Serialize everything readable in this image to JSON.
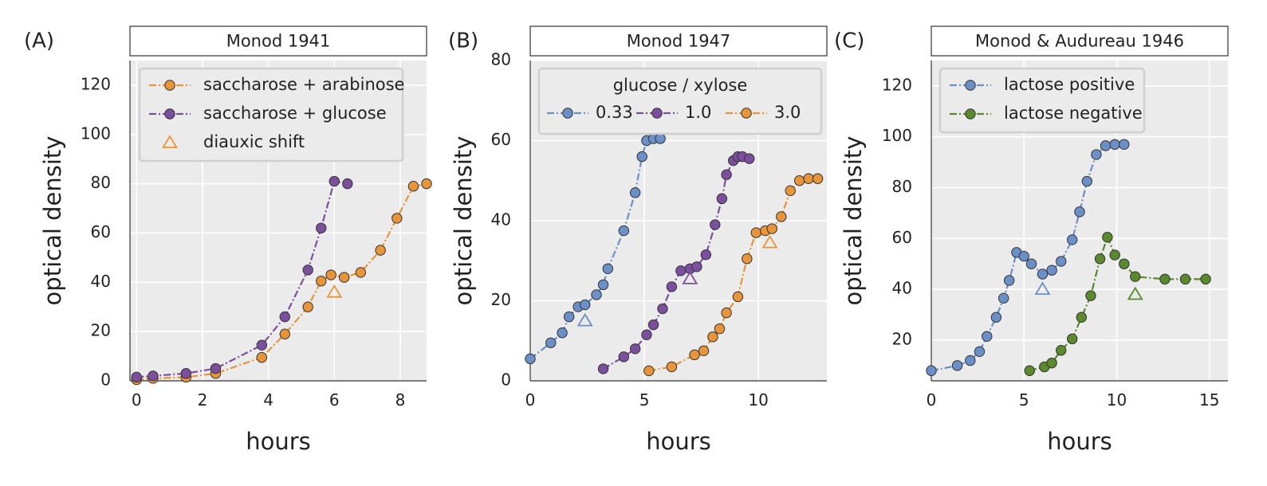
{
  "chart_data": [
    {
      "panel_label": "(A)",
      "type": "line",
      "title": "Monod 1941",
      "xlabel": "hours",
      "ylabel": "optical density",
      "xlim": [
        -0.2,
        8.8
      ],
      "ylim": [
        0,
        130
      ],
      "xticks": [
        0,
        2,
        4,
        6,
        8
      ],
      "yticks": [
        0,
        20,
        40,
        60,
        80,
        100,
        120
      ],
      "grid": true,
      "legend": {
        "position": "top-left",
        "title": "",
        "layout": "vertical"
      },
      "series": [
        {
          "name": "saccharose + arabinose",
          "color": "#E8943A",
          "x": [
            0,
            0.5,
            1.5,
            2.4,
            3.8,
            4.5,
            5.2,
            5.6,
            5.9,
            6.3,
            6.8,
            7.4,
            7.9,
            8.4,
            8.8
          ],
          "y": [
            0.5,
            1,
            1.5,
            3,
            9.5,
            19,
            30,
            40.5,
            43,
            42,
            44,
            53,
            66,
            79,
            80
          ]
        },
        {
          "name": "saccharose + glucose",
          "color": "#7B4F9E",
          "x": [
            0,
            0.5,
            1.5,
            2.4,
            3.8,
            4.5,
            5.2,
            5.6,
            6.0,
            6.4
          ],
          "y": [
            1.5,
            2,
            3,
            5,
            14.5,
            26,
            45,
            62,
            81,
            80
          ]
        }
      ],
      "markers": [
        {
          "name": "diauxic shift",
          "color": "#E8943A",
          "x": 6.0,
          "y": 36
        }
      ]
    },
    {
      "panel_label": "(B)",
      "type": "line",
      "title": "Monod 1947",
      "xlabel": "hours",
      "ylabel": "optical density",
      "xlim": [
        0,
        13
      ],
      "ylim": [
        0,
        80
      ],
      "xticks": [
        0,
        5,
        10
      ],
      "yticks": [
        0,
        20,
        40,
        60,
        80
      ],
      "grid": true,
      "legend": {
        "position": "top-center",
        "title": "glucose / xylose",
        "layout": "horizontal"
      },
      "series": [
        {
          "name": "0.33",
          "color": "#6B8FC7",
          "x": [
            0,
            0.9,
            1.4,
            1.7,
            2.1,
            2.4,
            2.9,
            3.2,
            3.4,
            4.1,
            4.6,
            4.9,
            5.1,
            5.4,
            5.7
          ],
          "y": [
            5.5,
            9.5,
            12,
            16,
            18.5,
            19,
            21.5,
            24,
            28,
            37.5,
            47,
            56,
            60,
            60.5,
            60.5
          ]
        },
        {
          "name": "1.0",
          "color": "#7B4F9E",
          "x": [
            3.2,
            4.1,
            4.6,
            5.1,
            5.4,
            5.8,
            6.2,
            6.6,
            7.0,
            7.3,
            7.7,
            8.1,
            8.4,
            8.6,
            8.9,
            9.1,
            9.3,
            9.6
          ],
          "y": [
            3,
            6,
            8,
            11.5,
            14,
            18,
            23.5,
            27.5,
            28,
            28.5,
            31.5,
            39,
            45.5,
            51.5,
            55,
            56,
            56,
            55.5
          ]
        },
        {
          "name": "3.0",
          "color": "#E8943A",
          "x": [
            5.2,
            6.2,
            7.2,
            7.6,
            8.0,
            8.3,
            8.6,
            9.1,
            9.5,
            9.9,
            10.3,
            10.6,
            11.0,
            11.4,
            11.8,
            12.2,
            12.6
          ],
          "y": [
            2.5,
            3.5,
            6.5,
            7.5,
            11,
            13,
            17,
            21,
            30.5,
            37,
            37.5,
            38,
            41,
            47.5,
            50,
            50.5,
            50.5
          ]
        }
      ],
      "markers": [
        {
          "name": "0.33",
          "color": "#6B8FC7",
          "x": 2.4,
          "y": 15
        },
        {
          "name": "1.0",
          "color": "#7B4F9E",
          "x": 7.0,
          "y": 25.5
        },
        {
          "name": "3.0",
          "color": "#E8943A",
          "x": 10.5,
          "y": 34.5
        }
      ]
    },
    {
      "panel_label": "(C)",
      "type": "line",
      "title": "Monod & Audureau 1946",
      "xlabel": "hours",
      "ylabel": "optical density",
      "xlim": [
        0,
        16
      ],
      "ylim": [
        4,
        130
      ],
      "xticks": [
        0,
        5,
        10,
        15
      ],
      "yticks": [
        20,
        40,
        60,
        80,
        100,
        120
      ],
      "grid": true,
      "legend": {
        "position": "top-left",
        "title": "",
        "layout": "vertical"
      },
      "series": [
        {
          "name": "lactose positive",
          "color": "#6B8FC7",
          "x": [
            0,
            1.4,
            2.1,
            2.6,
            3.0,
            3.5,
            3.9,
            4.2,
            4.6,
            5.0,
            5.4,
            6.0,
            6.5,
            7.0,
            7.6,
            8.0,
            8.4,
            8.9,
            9.4,
            9.9,
            10.4
          ],
          "y": [
            8,
            10,
            12,
            15.5,
            21.5,
            29,
            36.5,
            43.5,
            54.5,
            53,
            50,
            46,
            47.5,
            51,
            59.5,
            70.5,
            82.5,
            93,
            96.5,
            97,
            97
          ]
        },
        {
          "name": "lactose negative",
          "color": "#5B8A2E",
          "x": [
            5.3,
            6.1,
            6.5,
            7.0,
            7.6,
            8.1,
            8.6,
            9.1,
            9.5,
            9.9,
            10.4,
            11.0,
            12.6,
            13.7,
            14.8
          ],
          "y": [
            8,
            9.5,
            11,
            16,
            20.5,
            29,
            37.5,
            52,
            60.5,
            53.5,
            50,
            45,
            44,
            44,
            44
          ]
        }
      ],
      "markers": [
        {
          "name": "lactose positive",
          "color": "#6B8FC7",
          "x": 6.0,
          "y": 40
        },
        {
          "name": "lactose negative",
          "color": "#5B8A2E",
          "x": 11.0,
          "y": 38
        }
      ]
    }
  ]
}
